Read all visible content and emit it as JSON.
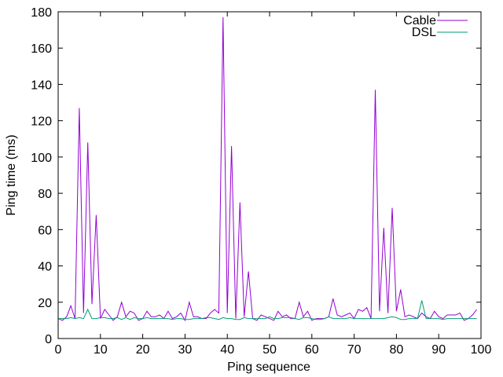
{
  "chart_data": {
    "type": "line",
    "title": "",
    "xlabel": "Ping sequence",
    "ylabel": "Ping time (ms)",
    "xlim": [
      0,
      100
    ],
    "ylim": [
      0,
      180
    ],
    "xticks": [
      0,
      10,
      20,
      30,
      40,
      50,
      60,
      70,
      80,
      90,
      100
    ],
    "yticks": [
      0,
      20,
      40,
      60,
      80,
      100,
      120,
      140,
      160,
      180
    ],
    "grid": false,
    "legend_position": "top-right",
    "x": [
      0,
      1,
      2,
      3,
      4,
      5,
      6,
      7,
      8,
      9,
      10,
      11,
      12,
      13,
      14,
      15,
      16,
      17,
      18,
      19,
      20,
      21,
      22,
      23,
      24,
      25,
      26,
      27,
      28,
      29,
      30,
      31,
      32,
      33,
      34,
      35,
      36,
      37,
      38,
      39,
      40,
      41,
      42,
      43,
      44,
      45,
      46,
      47,
      48,
      49,
      50,
      51,
      52,
      53,
      54,
      55,
      56,
      57,
      58,
      59,
      60,
      61,
      62,
      63,
      64,
      65,
      66,
      67,
      68,
      69,
      70,
      71,
      72,
      73,
      74,
      75,
      76,
      77,
      78,
      79,
      80,
      81,
      82,
      83,
      84,
      85,
      86,
      87,
      88,
      89,
      90,
      91,
      92,
      93,
      94,
      95,
      96,
      97,
      98,
      99
    ],
    "series": [
      {
        "name": "Cable",
        "color": "#9400d3",
        "values": [
          11,
          10,
          12,
          18,
          11,
          127,
          14,
          108,
          19,
          68,
          11,
          16,
          13,
          10,
          12,
          20,
          12,
          15,
          14,
          10,
          11,
          15,
          12,
          12,
          13,
          11,
          15,
          11,
          12,
          14,
          10,
          20,
          12,
          12,
          11,
          11,
          14,
          16,
          14,
          177,
          14,
          106,
          11,
          75,
          12,
          37,
          11,
          10,
          13,
          12,
          11,
          10,
          15,
          12,
          13,
          11,
          11,
          20,
          12,
          15,
          10,
          11,
          11,
          11,
          12,
          22,
          13,
          12,
          13,
          14,
          11,
          16,
          15,
          17,
          11,
          137,
          15,
          61,
          14,
          72,
          15,
          27,
          12,
          13,
          12,
          11,
          14,
          12,
          11,
          15,
          12,
          11,
          13,
          13,
          13,
          14,
          10,
          11,
          13,
          16
        ]
      },
      {
        "name": "DSL",
        "color": "#009e73",
        "values": [
          11,
          11,
          11,
          11.5,
          11,
          11.5,
          11,
          16,
          11,
          11,
          11.5,
          11.5,
          11,
          11,
          11.5,
          10.5,
          11.5,
          10.5,
          11.5,
          11,
          11,
          11.5,
          11,
          11,
          11,
          11,
          11,
          10.5,
          11,
          11,
          10.5,
          10.5,
          11,
          11,
          11,
          11.5,
          11.5,
          11,
          10.5,
          11.5,
          11,
          11,
          10.5,
          10.5,
          11.5,
          11,
          11,
          11,
          11,
          11,
          12,
          11,
          11,
          11.5,
          11.5,
          11.5,
          11,
          10.5,
          11.5,
          11.5,
          11,
          10.5,
          10.5,
          11,
          12,
          11,
          11,
          11,
          11,
          11.5,
          11,
          11,
          11,
          11,
          11,
          11,
          11,
          11,
          11.5,
          12,
          11.5,
          10.5,
          10.5,
          11,
          11,
          11,
          21,
          11,
          11,
          11,
          11,
          10.5,
          11,
          11,
          11,
          11,
          11,
          11,
          11,
          11
        ]
      }
    ]
  }
}
